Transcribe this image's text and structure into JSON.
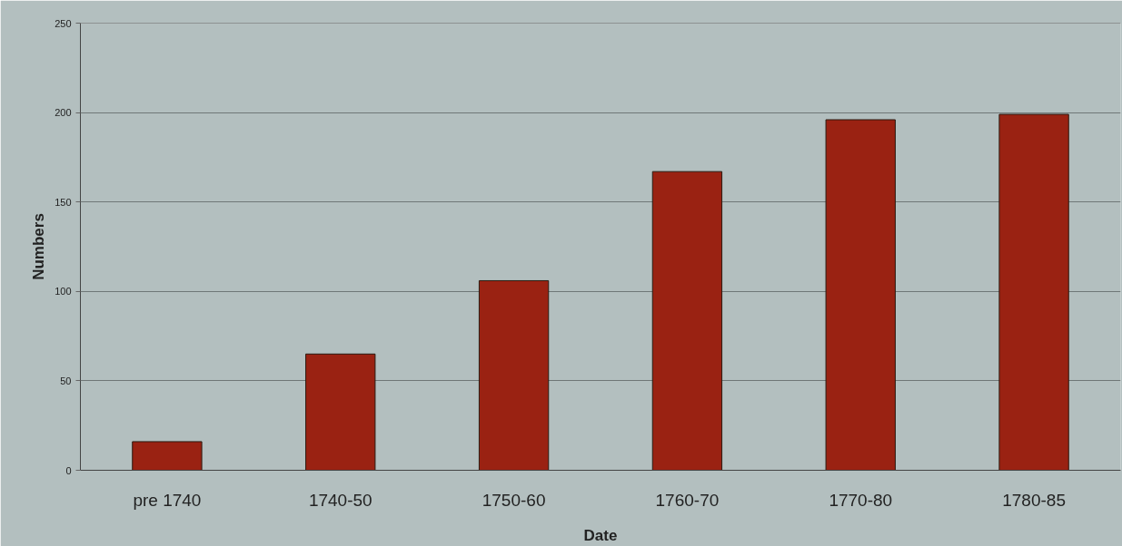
{
  "chart_data": {
    "type": "bar",
    "xlabel": "Date",
    "ylabel": "Numbers",
    "categories": [
      "pre 1740",
      "1740-50",
      "1750-60",
      "1760-70",
      "1770-80",
      "1780-85"
    ],
    "values": [
      16,
      65,
      106,
      167,
      196,
      199
    ],
    "color": "#9a2212",
    "ylim": [
      0,
      250
    ],
    "yticks": [
      0,
      50,
      100,
      150,
      200,
      250
    ],
    "grid": "y"
  }
}
